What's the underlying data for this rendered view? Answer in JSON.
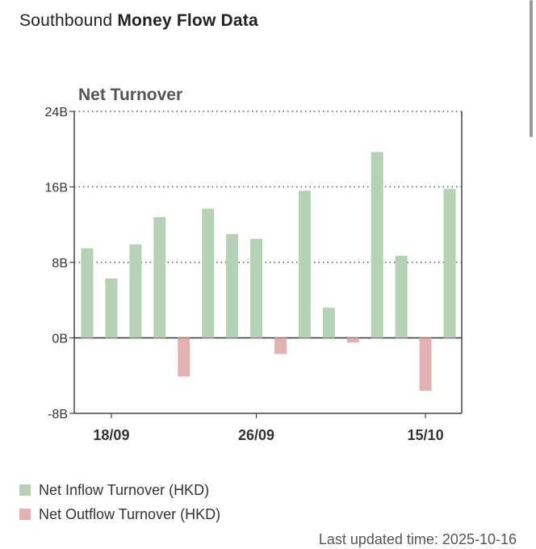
{
  "page": {
    "title_prefix": "Southbound",
    "title_bold": "Money Flow Data",
    "last_updated_label": "Last updated time: 2025-10-16"
  },
  "colors": {
    "inflow": "#b5d2b5",
    "outflow": "#e3b1b1",
    "grid": "#555555",
    "axis_text": "#333333"
  },
  "legend": {
    "items": [
      {
        "label": "Net Inflow Turnover (HKD)",
        "color": "#b5d2b5"
      },
      {
        "label": "Net Outflow Turnover (HKD)",
        "color": "#e3b1b1"
      }
    ]
  },
  "chart_data": {
    "type": "bar",
    "title": "Net Turnover",
    "ylabel": "",
    "xlabel": "",
    "ylim": [
      -8,
      24
    ],
    "yticks": [
      -8,
      0,
      8,
      16,
      24
    ],
    "ytick_labels": [
      "-8B",
      "0B",
      "8B",
      "16B",
      "24B"
    ],
    "xtick_labels": [
      {
        "label": "18/09",
        "index": 1
      },
      {
        "label": "26/09",
        "index": 7
      },
      {
        "label": "15/10",
        "index": 14
      }
    ],
    "grid": true,
    "values": [
      9.5,
      6.3,
      9.9,
      12.8,
      -4.1,
      13.7,
      11.0,
      10.5,
      -1.7,
      15.6,
      3.2,
      -0.5,
      19.7,
      8.7,
      -5.6,
      15.8
    ],
    "unit": "B HKD"
  }
}
